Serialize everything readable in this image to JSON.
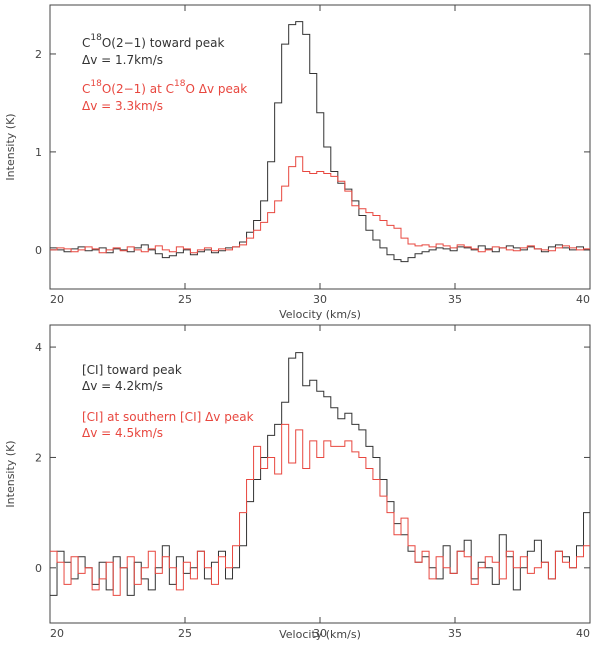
{
  "colors": {
    "black": "#333333",
    "red": "#e8473f",
    "axis": "#444444"
  },
  "chart_data": [
    {
      "type": "line",
      "step": true,
      "xlabel": "Velocity (km/s)",
      "ylabel": "Intensity (K)",
      "xlim": [
        20,
        40
      ],
      "ylim": [
        -0.4,
        2.5
      ],
      "xticks": [
        20,
        25,
        30,
        35,
        40
      ],
      "yticks": [
        0,
        1,
        2
      ],
      "legend": [
        {
          "line1_pre": "C",
          "line1_sup": "18",
          "line1_post": "O(2−1) toward peak",
          "line2": "Δv = 1.7km/s",
          "color": "black"
        },
        {
          "line1_pre": "C",
          "line1_sup": "18",
          "line1_mid": "O(2−1) at C",
          "line1_sup2": "18",
          "line1_post": "O Δv peak",
          "line2": "Δv = 3.3km/s",
          "color": "red"
        }
      ],
      "series": [
        {
          "name": "C18O(2-1) toward peak",
          "color": "black",
          "x": [
            20.0,
            20.26,
            20.52,
            20.78,
            21.04,
            21.3,
            21.56,
            21.82,
            22.08,
            22.34,
            22.6,
            22.86,
            23.12,
            23.38,
            23.64,
            23.9,
            24.16,
            24.42,
            24.68,
            24.94,
            25.2,
            25.46,
            25.72,
            25.98,
            26.24,
            26.5,
            26.76,
            27.02,
            27.28,
            27.54,
            27.8,
            28.06,
            28.32,
            28.58,
            28.84,
            29.1,
            29.36,
            29.62,
            29.88,
            30.14,
            30.4,
            30.66,
            30.92,
            31.18,
            31.44,
            31.7,
            31.96,
            32.22,
            32.48,
            32.74,
            33.0,
            33.26,
            33.52,
            33.78,
            34.04,
            34.3,
            34.56,
            34.82,
            35.08,
            35.34,
            35.6,
            35.86,
            36.12,
            36.38,
            36.64,
            36.9,
            37.16,
            37.42,
            37.68,
            37.94,
            38.2,
            38.46,
            38.72,
            38.98,
            39.24,
            39.5,
            39.76
          ],
          "y": [
            0.02,
            0.0,
            -0.02,
            0.01,
            0.03,
            -0.01,
            0.0,
            0.02,
            -0.03,
            0.01,
            0.0,
            -0.02,
            0.02,
            0.05,
            0.0,
            -0.04,
            -0.08,
            -0.06,
            -0.03,
            0.0,
            -0.05,
            -0.02,
            0.0,
            -0.03,
            -0.01,
            0.02,
            0.03,
            0.08,
            0.18,
            0.3,
            0.5,
            0.9,
            1.5,
            2.1,
            2.3,
            2.33,
            2.2,
            1.8,
            1.4,
            1.05,
            0.8,
            0.68,
            0.62,
            0.5,
            0.35,
            0.2,
            0.1,
            0.02,
            -0.05,
            -0.1,
            -0.12,
            -0.08,
            -0.04,
            -0.02,
            0.0,
            0.02,
            0.01,
            -0.01,
            0.03,
            0.02,
            0.0,
            0.04,
            0.01,
            -0.02,
            0.02,
            0.04,
            0.02,
            0.0,
            0.03,
            0.01,
            -0.02,
            0.03,
            0.05,
            0.02,
            0.0,
            0.03,
            0.0
          ]
        },
        {
          "name": "C18O(2-1) at C18O Δv peak",
          "color": "red",
          "x": [
            20.0,
            20.26,
            20.52,
            20.78,
            21.04,
            21.3,
            21.56,
            21.82,
            22.08,
            22.34,
            22.6,
            22.86,
            23.12,
            23.38,
            23.64,
            23.9,
            24.16,
            24.42,
            24.68,
            24.94,
            25.2,
            25.46,
            25.72,
            25.98,
            26.24,
            26.5,
            26.76,
            27.02,
            27.28,
            27.54,
            27.8,
            28.06,
            28.32,
            28.58,
            28.84,
            29.1,
            29.36,
            29.62,
            29.88,
            30.14,
            30.4,
            30.66,
            30.92,
            31.18,
            31.44,
            31.7,
            31.96,
            32.22,
            32.48,
            32.74,
            33.0,
            33.26,
            33.52,
            33.78,
            34.04,
            34.3,
            34.56,
            34.82,
            35.08,
            35.34,
            35.6,
            35.86,
            36.12,
            36.38,
            36.64,
            36.9,
            37.16,
            37.42,
            37.68,
            37.94,
            38.2,
            38.46,
            38.72,
            38.98,
            39.24,
            39.5,
            39.76
          ],
          "y": [
            0.0,
            0.02,
            0.01,
            -0.02,
            0.0,
            0.03,
            0.01,
            -0.03,
            0.0,
            0.02,
            -0.01,
            0.03,
            0.0,
            -0.02,
            0.01,
            0.04,
            0.0,
            -0.02,
            0.03,
            0.01,
            -0.03,
            0.0,
            0.02,
            -0.01,
            0.01,
            0.0,
            0.03,
            0.05,
            0.12,
            0.2,
            0.28,
            0.38,
            0.5,
            0.65,
            0.85,
            0.95,
            0.8,
            0.78,
            0.8,
            0.78,
            0.75,
            0.7,
            0.6,
            0.45,
            0.42,
            0.38,
            0.35,
            0.3,
            0.25,
            0.22,
            0.12,
            0.06,
            0.04,
            0.05,
            0.03,
            0.06,
            0.04,
            0.02,
            0.05,
            0.03,
            0.01,
            -0.02,
            0.0,
            0.03,
            0.02,
            0.0,
            -0.01,
            0.02,
            0.04,
            0.01,
            0.0,
            -0.01,
            0.02,
            0.04,
            0.02,
            0.0,
            0.01
          ]
        }
      ]
    },
    {
      "type": "line",
      "step": true,
      "xlabel": "Velocity (km/s)",
      "ylabel": "Intensity (K)",
      "xlim": [
        20,
        40
      ],
      "ylim": [
        -1.0,
        4.4
      ],
      "xticks": [
        20,
        25,
        30,
        35,
        40
      ],
      "yticks": [
        0,
        2,
        4
      ],
      "legend": [
        {
          "line1": "[CI] toward peak",
          "line2": "Δv = 4.2km/s",
          "color": "black"
        },
        {
          "line1": "[CI] at southern [CI] Δv peak",
          "line2": "Δv = 4.5km/s",
          "color": "red"
        }
      ],
      "series": [
        {
          "name": "[CI] toward peak",
          "color": "black",
          "x": [
            20.0,
            20.26,
            20.52,
            20.78,
            21.04,
            21.3,
            21.56,
            21.82,
            22.08,
            22.34,
            22.6,
            22.86,
            23.12,
            23.38,
            23.64,
            23.9,
            24.16,
            24.42,
            24.68,
            24.94,
            25.2,
            25.46,
            25.72,
            25.98,
            26.24,
            26.5,
            26.76,
            27.02,
            27.28,
            27.54,
            27.8,
            28.06,
            28.32,
            28.58,
            28.84,
            29.1,
            29.36,
            29.62,
            29.88,
            30.14,
            30.4,
            30.66,
            30.92,
            31.18,
            31.44,
            31.7,
            31.96,
            32.22,
            32.48,
            32.74,
            33.0,
            33.26,
            33.52,
            33.78,
            34.04,
            34.3,
            34.56,
            34.82,
            35.08,
            35.34,
            35.6,
            35.86,
            36.12,
            36.38,
            36.64,
            36.9,
            37.16,
            37.42,
            37.68,
            37.94,
            38.2,
            38.46,
            38.72,
            38.98,
            39.24,
            39.5,
            39.76
          ],
          "y": [
            -0.5,
            0.3,
            0.1,
            -0.2,
            0.2,
            0.0,
            -0.3,
            0.1,
            -0.4,
            0.2,
            0.0,
            -0.5,
            0.1,
            -0.2,
            -0.4,
            0.0,
            0.4,
            -0.3,
            0.2,
            -0.1,
            0.0,
            0.3,
            -0.2,
            0.1,
            0.3,
            -0.2,
            0.0,
            0.4,
            1.2,
            1.6,
            2.0,
            2.4,
            2.6,
            3.0,
            3.8,
            3.9,
            3.3,
            3.4,
            3.2,
            3.1,
            2.9,
            2.7,
            2.8,
            2.6,
            2.5,
            2.2,
            2.0,
            1.6,
            1.2,
            0.8,
            0.6,
            0.3,
            0.1,
            0.2,
            0.0,
            -0.2,
            0.4,
            -0.1,
            0.3,
            0.5,
            -0.2,
            0.1,
            0.0,
            -0.3,
            0.6,
            0.2,
            -0.4,
            0.0,
            0.3,
            0.5,
            0.1,
            -0.2,
            0.3,
            0.2,
            0.0,
            0.4,
            1.0
          ]
        },
        {
          "name": "[CI] at southern [CI] Δv peak",
          "color": "red",
          "x": [
            20.0,
            20.26,
            20.52,
            20.78,
            21.04,
            21.3,
            21.56,
            21.82,
            22.08,
            22.34,
            22.6,
            22.86,
            23.12,
            23.38,
            23.64,
            23.9,
            24.16,
            24.42,
            24.68,
            24.94,
            25.2,
            25.46,
            25.72,
            25.98,
            26.24,
            26.5,
            26.76,
            27.02,
            27.28,
            27.54,
            27.8,
            28.06,
            28.32,
            28.58,
            28.84,
            29.1,
            29.36,
            29.62,
            29.88,
            30.14,
            30.4,
            30.66,
            30.92,
            31.18,
            31.44,
            31.7,
            31.96,
            32.22,
            32.48,
            32.74,
            33.0,
            33.26,
            33.52,
            33.78,
            34.04,
            34.3,
            34.56,
            34.82,
            35.08,
            35.34,
            35.6,
            35.86,
            36.12,
            36.38,
            36.64,
            36.9,
            37.16,
            37.42,
            37.68,
            37.94,
            38.2,
            38.46,
            38.72,
            38.98,
            39.24,
            39.5,
            39.76
          ],
          "y": [
            0.3,
            0.1,
            -0.3,
            0.2,
            -0.1,
            0.0,
            -0.4,
            -0.2,
            0.1,
            -0.5,
            0.0,
            0.2,
            -0.3,
            0.0,
            0.3,
            -0.1,
            0.2,
            0.0,
            -0.4,
            0.1,
            -0.2,
            0.3,
            0.0,
            -0.3,
            0.2,
            0.0,
            0.4,
            1.0,
            1.6,
            2.2,
            1.8,
            2.0,
            1.7,
            2.6,
            1.9,
            2.5,
            1.8,
            2.3,
            2.0,
            2.3,
            2.2,
            2.2,
            2.3,
            2.1,
            2.0,
            1.8,
            1.6,
            1.3,
            1.0,
            0.6,
            0.9,
            0.4,
            0.1,
            0.3,
            -0.2,
            0.2,
            0.0,
            -0.1,
            0.3,
            0.2,
            -0.3,
            0.0,
            0.2,
            0.1,
            -0.2,
            0.3,
            0.0,
            0.2,
            -0.1,
            0.0,
            0.1,
            -0.2,
            0.3,
            0.1,
            0.0,
            0.2,
            0.4
          ]
        }
      ]
    }
  ]
}
